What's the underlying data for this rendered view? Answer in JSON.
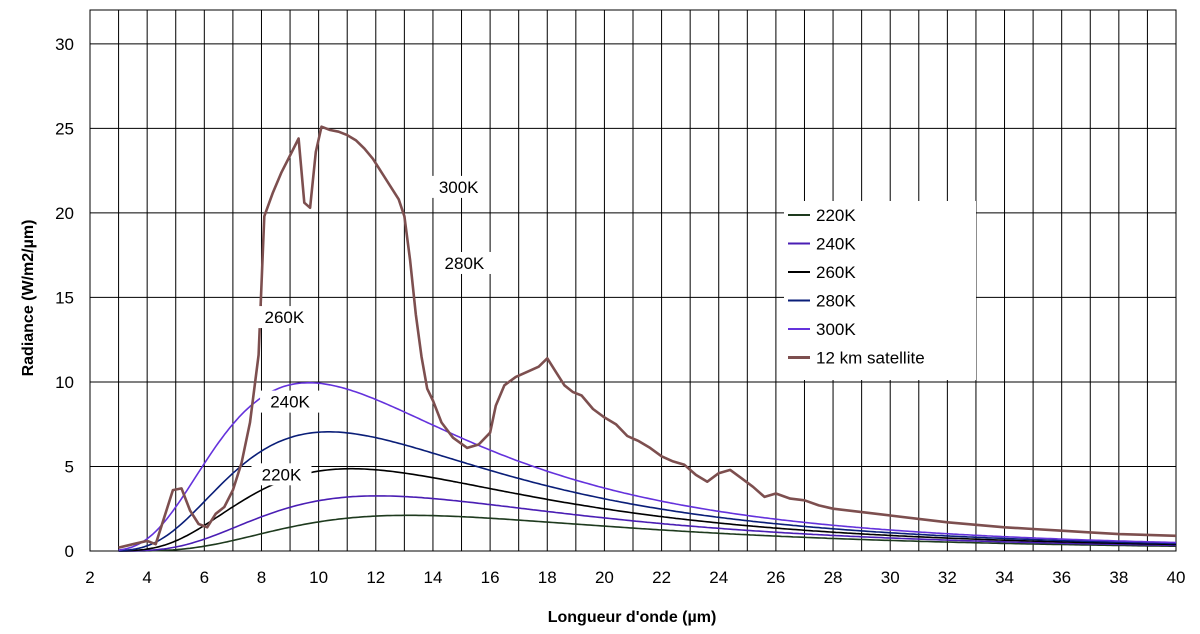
{
  "chart_data": {
    "type": "line",
    "title": "",
    "xlabel": "Longueur d'onde (µm)",
    "ylabel": "Radiance (W/m2/µm)",
    "xlim": [
      2,
      40
    ],
    "ylim": [
      0,
      32
    ],
    "x_ticks": [
      2,
      4,
      6,
      8,
      10,
      12,
      14,
      16,
      18,
      20,
      22,
      24,
      26,
      28,
      30,
      32,
      34,
      36,
      38,
      40
    ],
    "y_ticks": [
      0,
      5,
      10,
      15,
      20,
      25,
      30
    ],
    "grid": true,
    "minor_x_grid": 1,
    "legend_position": "right-middle",
    "series": [
      {
        "name": "220K",
        "color": "#1e3a1e",
        "temperature": 220,
        "label": "220K",
        "label_at": [
          8.7,
          4.3
        ]
      },
      {
        "name": "240K",
        "color": "#4a1eb4",
        "temperature": 240,
        "label": "240K",
        "label_at": [
          9.0,
          8.6
        ]
      },
      {
        "name": "260K",
        "color": "#000000",
        "temperature": 260,
        "label": "260K",
        "label_at": [
          8.8,
          13.6
        ]
      },
      {
        "name": "280K",
        "color": "#0a1e78",
        "temperature": 280,
        "label": "280K",
        "label_at": [
          15.1,
          16.8
        ]
      },
      {
        "name": "300K",
        "color": "#6432dc",
        "temperature": 300,
        "label": "300K",
        "label_at": [
          14.9,
          21.3
        ]
      },
      {
        "name": "12 km satellite",
        "color": "#7d4f4f",
        "points": [
          [
            3.0,
            0.2
          ],
          [
            3.5,
            0.4
          ],
          [
            4.0,
            0.6
          ],
          [
            4.3,
            0.4
          ],
          [
            4.6,
            2.0
          ],
          [
            4.9,
            3.6
          ],
          [
            5.2,
            3.7
          ],
          [
            5.5,
            2.4
          ],
          [
            5.8,
            1.6
          ],
          [
            6.1,
            1.4
          ],
          [
            6.4,
            2.2
          ],
          [
            6.7,
            2.6
          ],
          [
            7.0,
            3.6
          ],
          [
            7.3,
            5.2
          ],
          [
            7.6,
            7.6
          ],
          [
            7.9,
            11.6
          ],
          [
            8.1,
            19.8
          ],
          [
            8.4,
            21.2
          ],
          [
            8.7,
            22.4
          ],
          [
            9.0,
            23.4
          ],
          [
            9.3,
            24.4
          ],
          [
            9.5,
            20.6
          ],
          [
            9.7,
            20.3
          ],
          [
            9.9,
            23.6
          ],
          [
            10.1,
            25.1
          ],
          [
            10.4,
            24.9
          ],
          [
            10.7,
            24.8
          ],
          [
            11.0,
            24.6
          ],
          [
            11.3,
            24.3
          ],
          [
            11.6,
            23.8
          ],
          [
            11.9,
            23.2
          ],
          [
            12.2,
            22.4
          ],
          [
            12.5,
            21.6
          ],
          [
            12.8,
            20.8
          ],
          [
            13.0,
            19.8
          ],
          [
            13.2,
            17.2
          ],
          [
            13.4,
            14.0
          ],
          [
            13.6,
            11.5
          ],
          [
            13.8,
            9.6
          ],
          [
            14.0,
            8.9
          ],
          [
            14.3,
            7.6
          ],
          [
            14.7,
            6.7
          ],
          [
            15.2,
            6.1
          ],
          [
            15.6,
            6.3
          ],
          [
            16.0,
            7.0
          ],
          [
            16.2,
            8.6
          ],
          [
            16.5,
            9.8
          ],
          [
            16.9,
            10.3
          ],
          [
            17.3,
            10.6
          ],
          [
            17.7,
            10.9
          ],
          [
            18.0,
            11.4
          ],
          [
            18.3,
            10.6
          ],
          [
            18.6,
            9.8
          ],
          [
            18.9,
            9.4
          ],
          [
            19.2,
            9.2
          ],
          [
            19.6,
            8.4
          ],
          [
            20.0,
            7.9
          ],
          [
            20.4,
            7.5
          ],
          [
            20.8,
            6.8
          ],
          [
            21.2,
            6.5
          ],
          [
            21.6,
            6.1
          ],
          [
            22.0,
            5.6
          ],
          [
            22.4,
            5.3
          ],
          [
            22.8,
            5.1
          ],
          [
            23.2,
            4.5
          ],
          [
            23.6,
            4.1
          ],
          [
            24.0,
            4.6
          ],
          [
            24.4,
            4.8
          ],
          [
            24.8,
            4.3
          ],
          [
            25.2,
            3.8
          ],
          [
            25.6,
            3.2
          ],
          [
            26.0,
            3.4
          ],
          [
            26.5,
            3.1
          ],
          [
            27.0,
            3.0
          ],
          [
            27.5,
            2.7
          ],
          [
            28.0,
            2.5
          ],
          [
            29.0,
            2.3
          ],
          [
            30.0,
            2.1
          ],
          [
            31.0,
            1.9
          ],
          [
            32.0,
            1.7
          ],
          [
            33.0,
            1.55
          ],
          [
            34.0,
            1.4
          ],
          [
            35.0,
            1.3
          ],
          [
            36.0,
            1.2
          ],
          [
            37.0,
            1.1
          ],
          [
            38.0,
            1.0
          ],
          [
            39.0,
            0.95
          ],
          [
            40.0,
            0.9
          ]
        ]
      }
    ]
  }
}
